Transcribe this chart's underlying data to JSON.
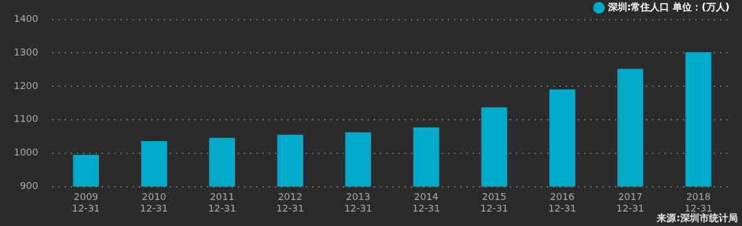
{
  "chart_data": {
    "type": "bar",
    "categories": [
      "2009\n12-31",
      "2010\n12-31",
      "2011\n12-31",
      "2012\n12-31",
      "2013\n12-31",
      "2014\n12-31",
      "2015\n12-31",
      "2016\n12-31",
      "2017\n12-31",
      "2018\n12-31"
    ],
    "series": [
      {
        "name": "深圳:常住人口 单位：(万人)",
        "color": "#00a9c8",
        "values": [
          995,
          1036,
          1046,
          1055,
          1062,
          1077,
          1137,
          1191,
          1252,
          1302
        ]
      }
    ],
    "ylim": [
      900,
      1400
    ],
    "yticks": [
      900,
      1000,
      1100,
      1200,
      1300,
      1400
    ],
    "grid": "y",
    "legend": "top right",
    "annotations": [
      "来源:深圳市统计局"
    ]
  }
}
